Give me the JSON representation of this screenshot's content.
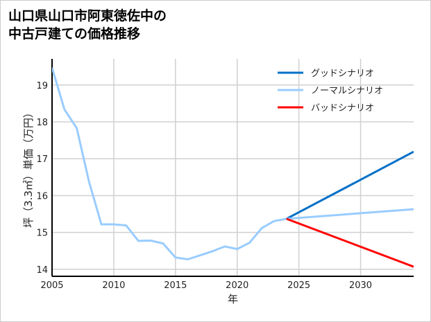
{
  "chart_data": {
    "type": "line",
    "title_lines": [
      "山口県山口市阿東徳佐中の",
      "中古戸建ての価格推移"
    ],
    "xlabel": "年",
    "ylabel": "坪（3.3㎡）単価（万円）",
    "xlim": [
      2005,
      2034.3
    ],
    "ylim": [
      13.81,
      19.71
    ],
    "xticks": [
      2005,
      2010,
      2015,
      2020,
      2025,
      2030
    ],
    "yticks": [
      14,
      15,
      16,
      17,
      18,
      19
    ],
    "grid": true,
    "legend_position": "top-right",
    "history": {
      "x": [
        2005,
        2006,
        2007,
        2008,
        2009,
        2010,
        2011,
        2012,
        2013,
        2014,
        2015,
        2016,
        2017,
        2018,
        2019,
        2020,
        2021,
        2022,
        2023,
        2024
      ],
      "y": [
        19.47,
        18.34,
        17.83,
        16.37,
        15.22,
        15.22,
        15.19,
        14.77,
        14.78,
        14.7,
        14.32,
        14.27,
        14.38,
        14.49,
        14.62,
        14.55,
        14.72,
        15.12,
        15.31,
        15.37
      ]
    },
    "series": [
      {
        "name": "グッドシナリオ",
        "color": "#0070c8",
        "x": [
          2024,
          2034.3
        ],
        "y": [
          15.37,
          17.19
        ]
      },
      {
        "name": "ノーマルシナリオ",
        "color": "#99ccff",
        "x": [
          2024,
          2034.3
        ],
        "y": [
          15.37,
          15.63
        ]
      },
      {
        "name": "バッドシナリオ",
        "color": "#ff0000",
        "x": [
          2024,
          2034.3
        ],
        "y": [
          15.37,
          14.07
        ]
      }
    ]
  }
}
